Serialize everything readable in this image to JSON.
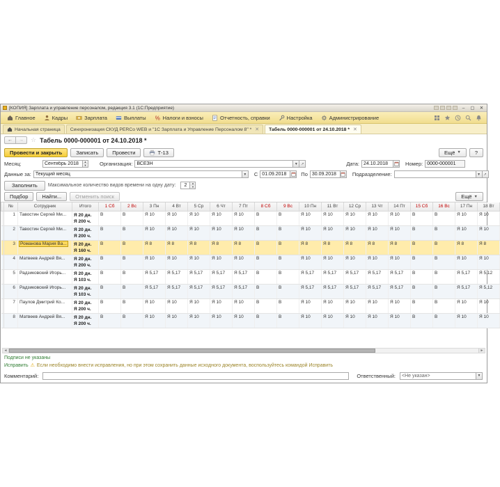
{
  "window": {
    "title": "[КОПИЯ] Зарплата и управление персоналом, редакция 3.1 (1С:Предприятие)",
    "minimize": "–",
    "maximize": "▢",
    "close": "✕"
  },
  "menu": {
    "items": [
      {
        "label": "Главное",
        "icon": "home-icon"
      },
      {
        "label": "Кадры",
        "icon": "staff-icon"
      },
      {
        "label": "Зарплата",
        "icon": "salary-icon"
      },
      {
        "label": "Выплаты",
        "icon": "payments-icon"
      },
      {
        "label": "Налоги и взносы",
        "icon": "taxes-icon"
      },
      {
        "label": "Отчетность, справки",
        "icon": "reports-icon"
      },
      {
        "label": "Настройка",
        "icon": "settings-icon"
      },
      {
        "label": "Администрирование",
        "icon": "admin-icon"
      }
    ],
    "service_icons": [
      "menu-grid-icon",
      "favorites-star-icon",
      "history-icon",
      "search-icon",
      "notifications-icon"
    ]
  },
  "tabs": [
    {
      "label": "Начальная страница",
      "icon": "home-tab-icon",
      "closable": false,
      "active": false
    },
    {
      "label": "Синхронизация СКУД PERCo WEB и \"1С Зарплата и Управление Персоналом 8\" *",
      "closable": true,
      "active": false
    },
    {
      "label": "Табель 0000-000001 от 24.10.2018 *",
      "closable": true,
      "active": true
    }
  ],
  "page": {
    "title": "Табель 0000-000001 от 24.10.2018 *"
  },
  "toolbar": {
    "post_and_close": "Провести и закрыть",
    "write": "Записать",
    "post": "Провести",
    "print_t13": "Т-13",
    "more": "Ещё",
    "help": "?"
  },
  "form": {
    "month_label": "Месяц:",
    "month_value": "Сентябрь 2018",
    "organization_label": "Организация:",
    "organization_value": "ВСЕЗН",
    "date_label": "Дата:",
    "date_value": "24.10.2018",
    "number_label": "Номер:",
    "number_value": "0000-000001",
    "data_for_label": "Данные за:",
    "data_for_value": "Текущий месяц",
    "from_label": "С",
    "from_value": "01.09.2018",
    "to_label": "По",
    "to_value": "30.09.2018",
    "department_label": "Подразделение:",
    "department_value": ""
  },
  "fill_bar": {
    "fill_button": "Заполнить",
    "max_types_label": "Максимальное количество видов времени на одну дату:",
    "max_types_value": "2"
  },
  "grid_toolbar": {
    "pick": "Подбор",
    "find": "Найти...",
    "cancel_search": "Отменить поиск",
    "more": "Ещё"
  },
  "table": {
    "headers": {
      "num": "№",
      "employee": "Сотрудник",
      "total": "Итого"
    },
    "days": [
      {
        "label": "1 Сб",
        "weekend": true
      },
      {
        "label": "2 Вс",
        "weekend": true
      },
      {
        "label": "3 Пн",
        "weekend": false
      },
      {
        "label": "4 Вт",
        "weekend": false
      },
      {
        "label": "5 Ср",
        "weekend": false
      },
      {
        "label": "6 Чт",
        "weekend": false
      },
      {
        "label": "7 Пт",
        "weekend": false
      },
      {
        "label": "8 Сб",
        "weekend": true
      },
      {
        "label": "9 Вс",
        "weekend": true
      },
      {
        "label": "10 Пн",
        "weekend": false
      },
      {
        "label": "11 Вт",
        "weekend": false
      },
      {
        "label": "12 Ср",
        "weekend": false
      },
      {
        "label": "13 Чт",
        "weekend": false
      },
      {
        "label": "14 Пт",
        "weekend": false
      },
      {
        "label": "15 Сб",
        "weekend": true
      },
      {
        "label": "16 Вс",
        "weekend": true
      },
      {
        "label": "17 Пн",
        "weekend": false
      },
      {
        "label": "18 Вт",
        "weekend": false
      }
    ],
    "rows": [
      {
        "num": "1",
        "name": "Тавостин Сергей Ми...",
        "total_days": "Я 20 дн.",
        "total_hours": "Я 200 ч.",
        "selected": false,
        "cells": [
          "В",
          "В",
          "Я 10",
          "Я 10",
          "Я 10",
          "Я 10",
          "Я 10",
          "В",
          "В",
          "Я 10",
          "Я 10",
          "Я 10",
          "Я 10",
          "Я 10",
          "В",
          "В",
          "Я 10",
          "Я 10"
        ]
      },
      {
        "num": "2",
        "name": "Тавостин Сергей Ми...",
        "total_days": "Я 20 дн.",
        "total_hours": "Я 200 ч.",
        "selected": false,
        "cells": [
          "В",
          "В",
          "Я 10",
          "Я 10",
          "Я 10",
          "Я 10",
          "Я 10",
          "В",
          "В",
          "Я 10",
          "Я 10",
          "Я 10",
          "Я 10",
          "Я 10",
          "В",
          "В",
          "Я 10",
          "Я 10"
        ]
      },
      {
        "num": "3",
        "name": "Романова Мария Ва...",
        "total_days": "Я 20 дн.",
        "total_hours": "Я 160 ч.",
        "selected": true,
        "cells": [
          "В",
          "В",
          "Я 8",
          "Я 8",
          "Я 8",
          "Я 8",
          "Я 8",
          "В",
          "В",
          "Я 8",
          "Я 8",
          "Я 8",
          "Я 8",
          "Я 8",
          "В",
          "В",
          "Я 8",
          "Я 8"
        ]
      },
      {
        "num": "4",
        "name": "Матвеев Андрей Вя...",
        "total_days": "Я 20 дн.",
        "total_hours": "Я 200 ч.",
        "selected": false,
        "cells": [
          "В",
          "В",
          "Я 10",
          "Я 10",
          "Я 10",
          "Я 10",
          "Я 10",
          "В",
          "В",
          "Я 10",
          "Я 10",
          "Я 10",
          "Я 10",
          "Я 10",
          "В",
          "В",
          "Я 10",
          "Я 10"
        ]
      },
      {
        "num": "5",
        "name": "Радзиковский Игорь...",
        "total_days": "Я 20 дн.",
        "total_hours": "Я 103 ч.",
        "selected": false,
        "cells": [
          "В",
          "В",
          "Я 5,17",
          "Я 5,17",
          "Я 5,17",
          "Я 5,17",
          "Я 5,17",
          "В",
          "В",
          "Я 5,17",
          "Я 5,17",
          "Я 5,17",
          "Я 5,17",
          "Я 5,17",
          "В",
          "В",
          "Я 5,17",
          "Я 5,12"
        ]
      },
      {
        "num": "6",
        "name": "Радзиковский Игорь...",
        "total_days": "Я 20 дн.",
        "total_hours": "Я 103 ч.",
        "selected": false,
        "cells": [
          "В",
          "В",
          "Я 5,17",
          "Я 5,17",
          "Я 5,17",
          "Я 5,17",
          "Я 5,17",
          "В",
          "В",
          "Я 5,17",
          "Я 5,17",
          "Я 5,17",
          "Я 5,17",
          "Я 5,17",
          "В",
          "В",
          "Я 5,17",
          "Я 5,12"
        ]
      },
      {
        "num": "7",
        "name": "Паулов Дмитрий Ко...",
        "total_days": "Я 20 дн.",
        "total_hours": "Я 200 ч.",
        "selected": false,
        "cells": [
          "В",
          "В",
          "Я 10",
          "Я 10",
          "Я 10",
          "Я 10",
          "Я 10",
          "В",
          "В",
          "Я 10",
          "Я 10",
          "Я 10",
          "Я 10",
          "Я 10",
          "В",
          "В",
          "Я 10",
          "Я 10"
        ]
      },
      {
        "num": "8",
        "name": "Матвеев Андрей Вя...",
        "total_days": "Я 20 дн.",
        "total_hours": "Я 200 ч.",
        "selected": false,
        "cells": [
          "В",
          "В",
          "Я 10",
          "Я 10",
          "Я 10",
          "Я 10",
          "Я 10",
          "В",
          "В",
          "Я 10",
          "Я 10",
          "Я 10",
          "Я 10",
          "Я 10",
          "В",
          "В",
          "Я 10",
          "Я 10"
        ]
      }
    ]
  },
  "footer": {
    "signatures_link": "Подписи не указаны",
    "fix_link": "Исправить",
    "warning_text": "Если необходимо внести исправления, но при этом сохранить данные исходного документа, воспользуйтесь командой Исправить",
    "comment_label": "Комментарий:",
    "comment_value": "",
    "responsible_label": "Ответственный:",
    "responsible_value": "<Не указан>"
  },
  "colors": {
    "menubar_yellow": "#f4e29b",
    "accent_yellow": "#f6cd35",
    "weekend_red": "#c00000",
    "selected_row": "#ffecab",
    "current_cell": "#ffd95c",
    "link_green": "#2f7d32"
  }
}
